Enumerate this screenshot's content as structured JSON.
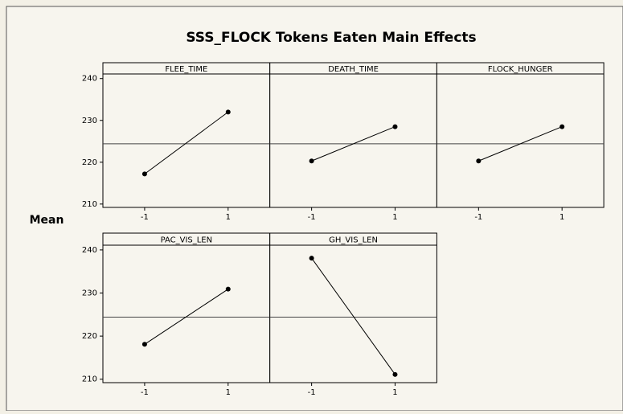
{
  "chart_data": {
    "type": "line",
    "title": "SSS_FLOCK Tokens Eaten Main Effects",
    "ylabel": "Mean",
    "ylim": [
      209.2,
      241.1
    ],
    "yticks": [
      210,
      220,
      230,
      240
    ],
    "xlim": [
      -2,
      2
    ],
    "xticks": [
      -1,
      1
    ],
    "mean_line": 224.4,
    "color": "#000000",
    "panels": [
      {
        "name": "FLEE_TIME",
        "x": [
          -1,
          1
        ],
        "values": [
          217.2,
          232.0
        ]
      },
      {
        "name": "DEATH_TIME",
        "x": [
          -1,
          1
        ],
        "values": [
          220.3,
          228.5
        ]
      },
      {
        "name": "FLOCK_HUNGER",
        "x": [
          -1,
          1
        ],
        "values": [
          220.3,
          228.5
        ]
      },
      {
        "name": "PAC_VIS_LEN",
        "x": [
          -1,
          1
        ],
        "values": [
          218.1,
          230.9
        ]
      },
      {
        "name": "GH_VIS_LEN",
        "x": [
          -1,
          1
        ],
        "values": [
          238.1,
          211.1
        ]
      }
    ]
  }
}
